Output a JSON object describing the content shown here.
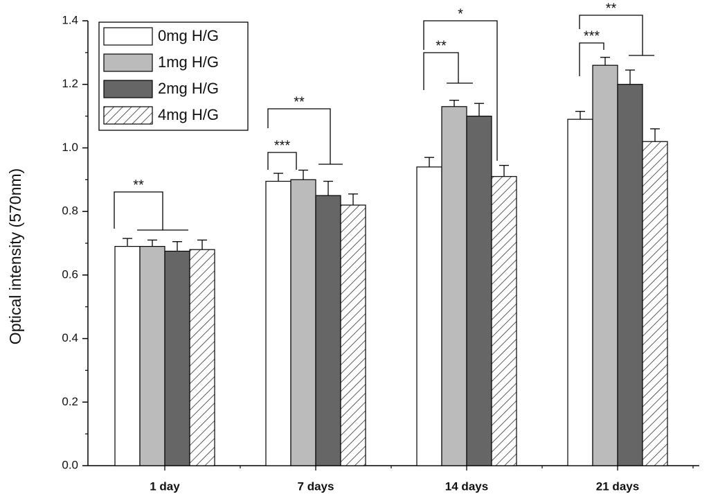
{
  "chart_data": {
    "type": "bar",
    "y_label": "Optical intensity (570nm)",
    "categories": [
      "1 day",
      "7 days",
      "14 days",
      "21 days"
    ],
    "series": [
      {
        "name": "0mg H/G",
        "color": "#ffffff",
        "values": [
          0.69,
          0.895,
          0.94,
          1.09
        ],
        "errors": [
          0.025,
          0.025,
          0.03,
          0.025
        ]
      },
      {
        "name": "1mg H/G",
        "color": "#bbbbbb",
        "values": [
          0.69,
          0.9,
          1.13,
          1.26
        ],
        "errors": [
          0.02,
          0.03,
          0.02,
          0.025
        ]
      },
      {
        "name": "2mg H/G",
        "color": "#666666",
        "values": [
          0.675,
          0.85,
          1.1,
          1.2
        ],
        "errors": [
          0.03,
          0.045,
          0.04,
          0.045
        ]
      },
      {
        "name": "4mg H/G",
        "color": "hatch",
        "values": [
          0.68,
          0.82,
          0.91,
          1.02
        ],
        "errors": [
          0.03,
          0.035,
          0.035,
          0.04
        ]
      }
    ],
    "annotations": [
      "**",
      "***",
      "**",
      "**",
      "*",
      "***",
      "**"
    ],
    "ylim": [
      0,
      1.4
    ],
    "yticks": [
      {
        "value": 0,
        "label": "0.0"
      },
      0.2,
      0.4,
      0.6,
      0.8,
      {
        "value": 1,
        "label": "1.0"
      },
      1.2,
      1.4
    ],
    "legend": "top-left"
  }
}
